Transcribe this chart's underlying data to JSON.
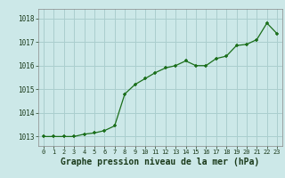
{
  "x": [
    0,
    1,
    2,
    3,
    4,
    5,
    6,
    7,
    8,
    9,
    10,
    11,
    12,
    13,
    14,
    15,
    16,
    17,
    18,
    19,
    20,
    21,
    22,
    23
  ],
  "y": [
    1013.0,
    1013.0,
    1013.0,
    1013.0,
    1013.1,
    1013.15,
    1013.25,
    1013.45,
    1014.8,
    1015.2,
    1015.45,
    1015.7,
    1015.9,
    1016.0,
    1016.2,
    1016.0,
    1016.0,
    1016.3,
    1016.4,
    1016.85,
    1016.9,
    1017.1,
    1017.8,
    1017.35
  ],
  "line_color": "#1a6e1a",
  "marker_color": "#1a6e1a",
  "bg_color": "#cce8e8",
  "grid_color": "#aacece",
  "xlabel": "Graphe pression niveau de la mer (hPa)",
  "xlabel_fontsize": 7,
  "tick_label_color": "#1a3a1a",
  "ylim": [
    1012.6,
    1018.4
  ],
  "yticks": [
    1013,
    1014,
    1015,
    1016,
    1017,
    1018
  ],
  "xticks": [
    0,
    1,
    2,
    3,
    4,
    5,
    6,
    7,
    8,
    9,
    10,
    11,
    12,
    13,
    14,
    15,
    16,
    17,
    18,
    19,
    20,
    21,
    22,
    23
  ],
  "figsize": [
    3.2,
    2.0
  ],
  "dpi": 100
}
